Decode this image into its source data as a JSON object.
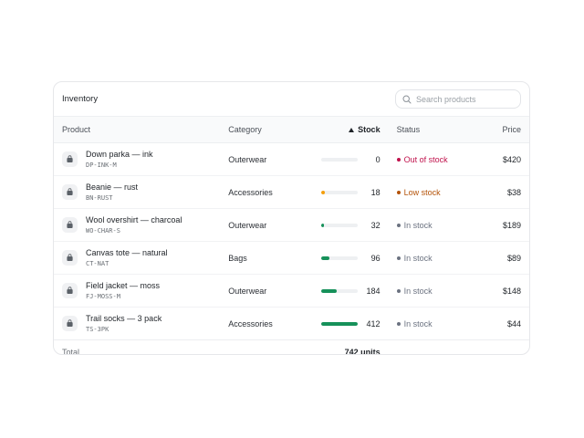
{
  "header": {
    "title": "Inventory",
    "search_placeholder": "Search products"
  },
  "columns": {
    "product": "Product",
    "category": "Category",
    "stock": "Stock",
    "status": "Status",
    "price": "Price",
    "sort_icon": "sort-ascending-icon"
  },
  "colors": {
    "out_of_stock": "#c0124c",
    "low_stock": "#b45309",
    "in_stock": "#6b7280",
    "bar_full": "#16915a",
    "bar_low": "#f59e0b",
    "bar_track": "#eef0f2"
  },
  "stock_scale_max": 412,
  "rows": [
    {
      "name": "Down parka — ink",
      "sku": "DP-INK-M",
      "category": "Outerwear",
      "stock": "0",
      "stock_value": 0,
      "status": "Out of stock",
      "status_kind": "out",
      "price": "$420",
      "icon": "shopping-bag-icon"
    },
    {
      "name": "Beanie — rust",
      "sku": "BN-RUST",
      "category": "Accessories",
      "stock": "18",
      "stock_value": 18,
      "status": "Low stock",
      "status_kind": "low",
      "price": "$38",
      "icon": "shopping-bag-icon"
    },
    {
      "name": "Wool overshirt — charcoal",
      "sku": "WO-CHAR-S",
      "category": "Outerwear",
      "stock": "32",
      "stock_value": 32,
      "status": "In stock",
      "status_kind": "in",
      "price": "$189",
      "icon": "shopping-bag-icon"
    },
    {
      "name": "Canvas tote — natural",
      "sku": "CT-NAT",
      "category": "Bags",
      "stock": "96",
      "stock_value": 96,
      "status": "In stock",
      "status_kind": "in",
      "price": "$89",
      "icon": "shopping-bag-icon"
    },
    {
      "name": "Field jacket — moss",
      "sku": "FJ-MOSS-M",
      "category": "Outerwear",
      "stock": "184",
      "stock_value": 184,
      "status": "In stock",
      "status_kind": "in",
      "price": "$148",
      "icon": "shopping-bag-icon"
    },
    {
      "name": "Trail socks — 3 pack",
      "sku": "TS-3PK",
      "category": "Accessories",
      "stock": "412",
      "stock_value": 412,
      "status": "In stock",
      "status_kind": "in",
      "price": "$44",
      "icon": "shopping-bag-icon"
    }
  ],
  "footer": {
    "label": "Total",
    "value": "742 units"
  }
}
